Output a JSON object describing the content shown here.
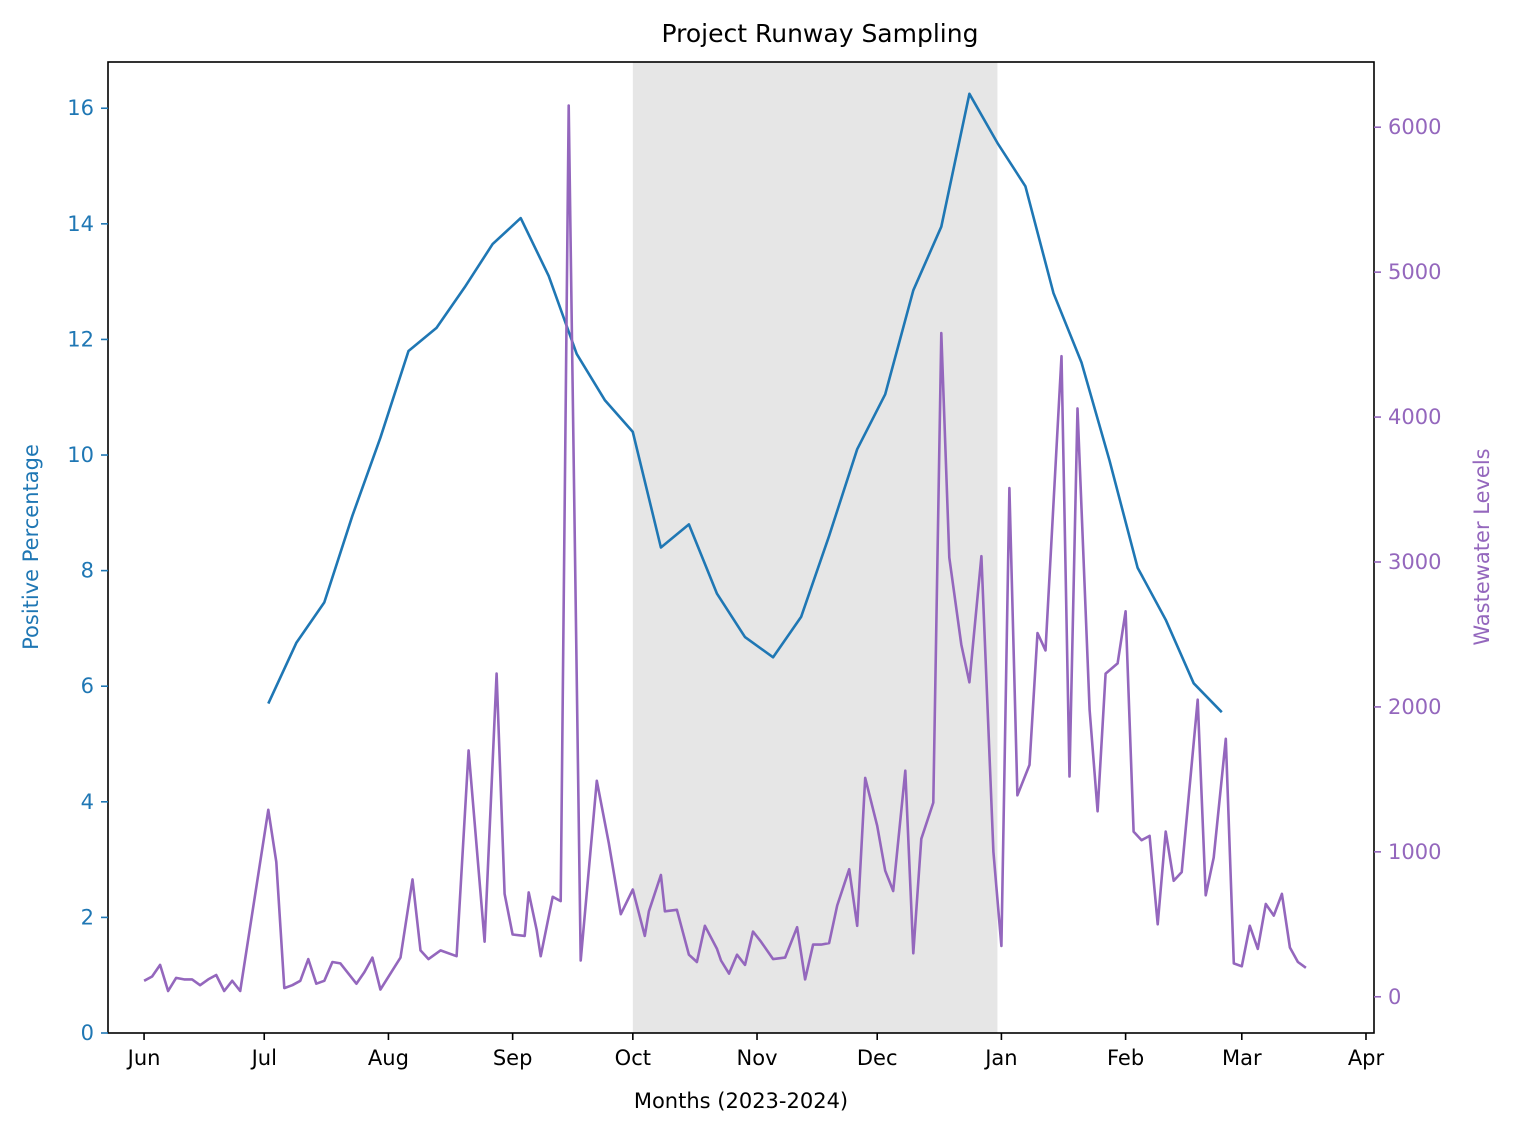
{
  "colors": {
    "left_axis": "#1f77b4",
    "right_axis": "#9467bd",
    "shade": "#e6e6e6"
  },
  "chart_data": {
    "type": "line",
    "title": "Project Runway Sampling",
    "xlabel": "Months (2023-2024)",
    "ylabel_left": "Positive Percentage",
    "ylabel_right": "Wastewater Levels",
    "x_ticks": [
      {
        "date": "2023-06-01",
        "label": "Jun"
      },
      {
        "date": "2023-07-01",
        "label": "Jul"
      },
      {
        "date": "2023-08-01",
        "label": "Aug"
      },
      {
        "date": "2023-09-01",
        "label": "Sep"
      },
      {
        "date": "2023-10-01",
        "label": "Oct"
      },
      {
        "date": "2023-11-01",
        "label": "Nov"
      },
      {
        "date": "2023-12-01",
        "label": "Dec"
      },
      {
        "date": "2024-01-01",
        "label": "Jan"
      },
      {
        "date": "2024-02-01",
        "label": "Feb"
      },
      {
        "date": "2024-03-01",
        "label": "Mar"
      },
      {
        "date": "2024-04-01",
        "label": "Apr"
      }
    ],
    "xlim": [
      "2023-05-23",
      "2024-04-03"
    ],
    "ylim_left": [
      0,
      16.8
    ],
    "yticks_left": [
      0,
      2,
      4,
      6,
      8,
      10,
      12,
      14,
      16
    ],
    "ylim_right": [
      -250,
      6450
    ],
    "yticks_right": [
      0,
      1000,
      2000,
      3000,
      4000,
      5000,
      6000
    ],
    "shaded_span": [
      "2023-10-01",
      "2023-12-31"
    ],
    "grid": false,
    "series": [
      {
        "axis": "left",
        "color": "#1f77b4",
        "points": [
          [
            "2023-07-02",
            5.7
          ],
          [
            "2023-07-09",
            6.75
          ],
          [
            "2023-07-16",
            7.45
          ],
          [
            "2023-07-23",
            8.95
          ],
          [
            "2023-07-30",
            10.3
          ],
          [
            "2023-08-06",
            11.8
          ],
          [
            "2023-08-13",
            12.2
          ],
          [
            "2023-08-20",
            12.9
          ],
          [
            "2023-08-27",
            13.65
          ],
          [
            "2023-09-03",
            14.1
          ],
          [
            "2023-09-10",
            13.1
          ],
          [
            "2023-09-17",
            11.75
          ],
          [
            "2023-09-24",
            10.95
          ],
          [
            "2023-10-01",
            10.4
          ],
          [
            "2023-10-08",
            8.4
          ],
          [
            "2023-10-15",
            8.8
          ],
          [
            "2023-10-22",
            7.6
          ],
          [
            "2023-10-29",
            6.85
          ],
          [
            "2023-11-05",
            6.5
          ],
          [
            "2023-11-12",
            7.2
          ],
          [
            "2023-11-19",
            8.6
          ],
          [
            "2023-11-26",
            10.1
          ],
          [
            "2023-12-03",
            11.05
          ],
          [
            "2023-12-10",
            12.85
          ],
          [
            "2023-12-17",
            13.95
          ],
          [
            "2023-12-24",
            16.25
          ],
          [
            "2023-12-31",
            15.4
          ],
          [
            "2024-01-07",
            14.65
          ],
          [
            "2024-01-14",
            12.8
          ],
          [
            "2024-01-21",
            11.6
          ],
          [
            "2024-01-28",
            9.9
          ],
          [
            "2024-02-04",
            8.05
          ],
          [
            "2024-02-11",
            7.15
          ],
          [
            "2024-02-18",
            6.05
          ],
          [
            "2024-02-25",
            5.55
          ]
        ]
      },
      {
        "axis": "right",
        "color": "#9467bd",
        "points": [
          [
            "2023-06-01",
            110
          ],
          [
            "2023-06-03",
            140
          ],
          [
            "2023-06-05",
            220
          ],
          [
            "2023-06-07",
            40
          ],
          [
            "2023-06-09",
            130
          ],
          [
            "2023-06-11",
            120
          ],
          [
            "2023-06-13",
            120
          ],
          [
            "2023-06-15",
            80
          ],
          [
            "2023-06-17",
            120
          ],
          [
            "2023-06-19",
            150
          ],
          [
            "2023-06-21",
            40
          ],
          [
            "2023-06-23",
            110
          ],
          [
            "2023-06-25",
            40
          ],
          [
            "2023-07-02",
            1290
          ],
          [
            "2023-07-04",
            930
          ],
          [
            "2023-07-06",
            60
          ],
          [
            "2023-07-08",
            80
          ],
          [
            "2023-07-10",
            110
          ],
          [
            "2023-07-12",
            260
          ],
          [
            "2023-07-14",
            90
          ],
          [
            "2023-07-16",
            110
          ],
          [
            "2023-07-18",
            240
          ],
          [
            "2023-07-20",
            230
          ],
          [
            "2023-07-22",
            160
          ],
          [
            "2023-07-24",
            90
          ],
          [
            "2023-07-26",
            170
          ],
          [
            "2023-07-28",
            270
          ],
          [
            "2023-07-30",
            50
          ],
          [
            "2023-08-04",
            270
          ],
          [
            "2023-08-07",
            810
          ],
          [
            "2023-08-09",
            320
          ],
          [
            "2023-08-11",
            260
          ],
          [
            "2023-08-14",
            320
          ],
          [
            "2023-08-18",
            280
          ],
          [
            "2023-08-21",
            1700
          ],
          [
            "2023-08-25",
            380
          ],
          [
            "2023-08-28",
            2230
          ],
          [
            "2023-08-30",
            710
          ],
          [
            "2023-09-01",
            430
          ],
          [
            "2023-09-04",
            420
          ],
          [
            "2023-09-05",
            720
          ],
          [
            "2023-09-07",
            460
          ],
          [
            "2023-09-08",
            280
          ],
          [
            "2023-09-11",
            690
          ],
          [
            "2023-09-13",
            660
          ],
          [
            "2023-09-15",
            6150
          ],
          [
            "2023-09-18",
            250
          ],
          [
            "2023-09-22",
            1490
          ],
          [
            "2023-09-25",
            1060
          ],
          [
            "2023-09-28",
            570
          ],
          [
            "2023-10-01",
            740
          ],
          [
            "2023-10-04",
            420
          ],
          [
            "2023-10-05",
            590
          ],
          [
            "2023-10-08",
            840
          ],
          [
            "2023-10-09",
            590
          ],
          [
            "2023-10-12",
            600
          ],
          [
            "2023-10-15",
            290
          ],
          [
            "2023-10-17",
            240
          ],
          [
            "2023-10-19",
            490
          ],
          [
            "2023-10-22",
            330
          ],
          [
            "2023-10-23",
            250
          ],
          [
            "2023-10-25",
            160
          ],
          [
            "2023-10-27",
            290
          ],
          [
            "2023-10-29",
            220
          ],
          [
            "2023-10-31",
            450
          ],
          [
            "2023-11-02",
            380
          ],
          [
            "2023-11-05",
            260
          ],
          [
            "2023-11-08",
            270
          ],
          [
            "2023-11-11",
            480
          ],
          [
            "2023-11-13",
            120
          ],
          [
            "2023-11-15",
            360
          ],
          [
            "2023-11-17",
            360
          ],
          [
            "2023-11-19",
            370
          ],
          [
            "2023-11-21",
            630
          ],
          [
            "2023-11-24",
            880
          ],
          [
            "2023-11-26",
            490
          ],
          [
            "2023-11-28",
            1510
          ],
          [
            "2023-12-01",
            1180
          ],
          [
            "2023-12-03",
            870
          ],
          [
            "2023-12-05",
            730
          ],
          [
            "2023-12-08",
            1560
          ],
          [
            "2023-12-10",
            300
          ],
          [
            "2023-12-12",
            1090
          ],
          [
            "2023-12-15",
            1340
          ],
          [
            "2023-12-17",
            4580
          ],
          [
            "2023-12-19",
            3030
          ],
          [
            "2023-12-22",
            2430
          ],
          [
            "2023-12-24",
            2170
          ],
          [
            "2023-12-27",
            3040
          ],
          [
            "2023-12-30",
            1000
          ],
          [
            "2024-01-01",
            350
          ],
          [
            "2024-01-03",
            3510
          ],
          [
            "2024-01-05",
            1390
          ],
          [
            "2024-01-08",
            1600
          ],
          [
            "2024-01-10",
            2510
          ],
          [
            "2024-01-12",
            2390
          ],
          [
            "2024-01-16",
            4420
          ],
          [
            "2024-01-18",
            1520
          ],
          [
            "2024-01-20",
            4060
          ],
          [
            "2024-01-23",
            1980
          ],
          [
            "2024-01-25",
            1280
          ],
          [
            "2024-01-27",
            2230
          ],
          [
            "2024-01-30",
            2300
          ],
          [
            "2024-02-01",
            2660
          ],
          [
            "2024-02-03",
            1140
          ],
          [
            "2024-02-05",
            1080
          ],
          [
            "2024-02-07",
            1110
          ],
          [
            "2024-02-09",
            500
          ],
          [
            "2024-02-11",
            1140
          ],
          [
            "2024-02-13",
            800
          ],
          [
            "2024-02-15",
            860
          ],
          [
            "2024-02-19",
            2050
          ],
          [
            "2024-02-21",
            700
          ],
          [
            "2024-02-23",
            960
          ],
          [
            "2024-02-26",
            1780
          ],
          [
            "2024-02-28",
            230
          ],
          [
            "2024-03-01",
            210
          ],
          [
            "2024-03-03",
            490
          ],
          [
            "2024-03-05",
            330
          ],
          [
            "2024-03-07",
            640
          ],
          [
            "2024-03-09",
            560
          ],
          [
            "2024-03-11",
            710
          ],
          [
            "2024-03-13",
            340
          ],
          [
            "2024-03-15",
            240
          ],
          [
            "2024-03-17",
            200
          ]
        ]
      }
    ]
  }
}
